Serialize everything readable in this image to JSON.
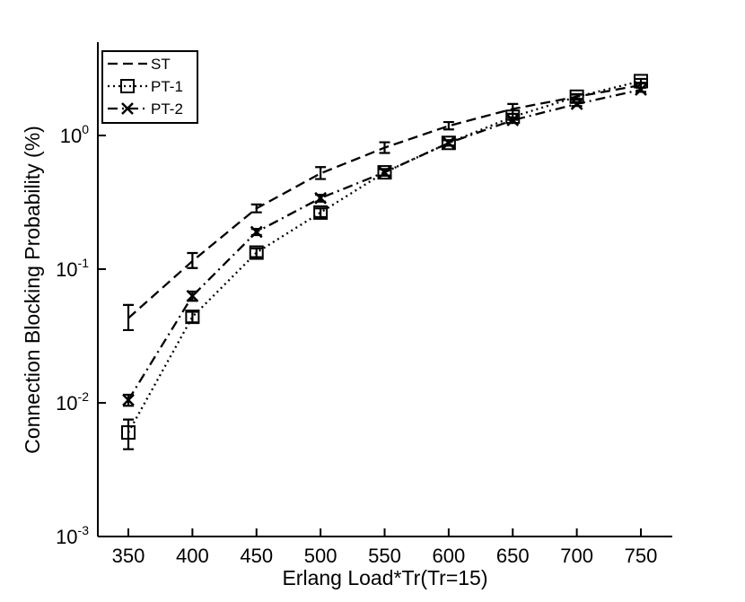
{
  "chart_data": {
    "type": "line",
    "xlabel": "Erlang Load*Tr(Tr=15)",
    "ylabel": "Connection Blocking Probability (%)",
    "x": [
      350,
      400,
      450,
      500,
      550,
      600,
      650,
      700,
      750
    ],
    "xlim": [
      300,
      780
    ],
    "ylim": [
      0.001,
      5
    ],
    "yscale": "log",
    "y_ticks": [
      {
        "value": 0.001,
        "base": "10",
        "exp": "-3"
      },
      {
        "value": 0.01,
        "base": "10",
        "exp": "-2"
      },
      {
        "value": 0.1,
        "base": "10",
        "exp": "-1"
      },
      {
        "value": 1,
        "base": "10",
        "exp": "0"
      }
    ],
    "legend_position": "top-left",
    "grid": false,
    "series": [
      {
        "name": "ST",
        "line_style": "dashed",
        "marker": "none",
        "values": [
          0.043,
          0.115,
          0.285,
          0.52,
          0.81,
          1.18,
          1.58,
          1.95,
          2.38
        ],
        "error_low": [
          0.035,
          0.102,
          0.266,
          0.472,
          0.74,
          1.11,
          1.45,
          1.86,
          2.28
        ],
        "error_high": [
          0.054,
          0.132,
          0.305,
          0.58,
          0.89,
          1.26,
          1.72,
          2.04,
          2.48
        ]
      },
      {
        "name": "PT-1",
        "line_style": "dotted",
        "marker": "square",
        "values": [
          0.006,
          0.044,
          0.133,
          0.265,
          0.53,
          0.88,
          1.38,
          1.95,
          2.55
        ],
        "error_low": [
          0.0045,
          0.04,
          0.123,
          0.245,
          0.5,
          0.84,
          1.31,
          1.88,
          2.45
        ],
        "error_high": [
          0.0075,
          0.048,
          0.143,
          0.285,
          0.56,
          0.92,
          1.45,
          2.02,
          2.65
        ]
      },
      {
        "name": "PT-2",
        "line_style": "dash-dot",
        "marker": "x",
        "values": [
          0.0105,
          0.063,
          0.19,
          0.34,
          0.53,
          0.88,
          1.3,
          1.72,
          2.2
        ],
        "error_low": [
          0.0095,
          0.058,
          0.18,
          0.32,
          0.5,
          0.84,
          1.24,
          1.66,
          2.12
        ],
        "error_high": [
          0.0115,
          0.068,
          0.2,
          0.36,
          0.56,
          0.92,
          1.36,
          1.78,
          2.28
        ]
      }
    ]
  }
}
